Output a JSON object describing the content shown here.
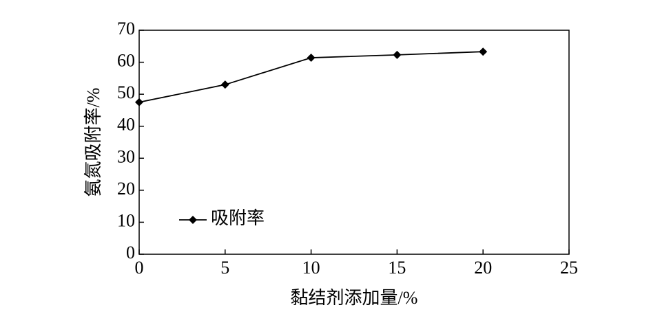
{
  "chart_data": {
    "type": "line",
    "xlabel": "黏结剂添加量/%",
    "ylabel": "氨氮吸附率/%",
    "x": [
      0,
      5,
      10,
      15,
      20
    ],
    "series": [
      {
        "name": "吸附率",
        "color": "#000000",
        "marker": "diamond",
        "values": [
          47.5,
          53,
          61.4,
          62.3,
          63.3
        ]
      }
    ],
    "xlim": [
      0,
      25
    ],
    "xticks": [
      0,
      5,
      10,
      15,
      20,
      25
    ],
    "ylim": [
      0,
      70
    ],
    "yticks": [
      0,
      10,
      20,
      30,
      40,
      50,
      60,
      70
    ],
    "legend": "lower left",
    "grid": false
  }
}
